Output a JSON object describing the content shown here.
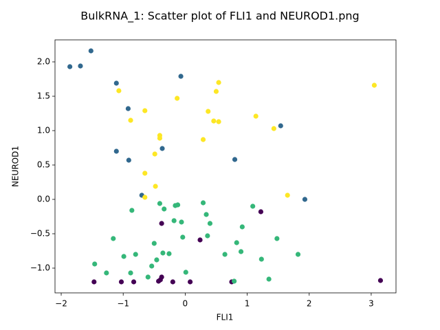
{
  "chart_data": {
    "type": "scatter",
    "title": "BulkRNA_1: Scatter plot of FLI1 and NEUROD1.png",
    "xlabel": "FLI1",
    "ylabel": "NEUROD1",
    "xlim": [
      -2.1,
      3.4
    ],
    "ylim": [
      -1.36,
      2.32
    ],
    "xticks": [
      -2,
      -1,
      0,
      1,
      2,
      3
    ],
    "yticks": [
      -1.0,
      -0.5,
      0.0,
      0.5,
      1.0,
      1.5,
      2.0
    ],
    "xtick_labels": [
      "−2",
      "−1",
      "0",
      "1",
      "2",
      "3"
    ],
    "ytick_labels": [
      "−1.0",
      "−0.5",
      "0.0",
      "0.5",
      "1.0",
      "1.5",
      "2.0"
    ],
    "grid": false,
    "legend": "none",
    "series": [
      {
        "color": "#440154",
        "points": [
          [
            -1.47,
            -1.2
          ],
          [
            -1.03,
            -1.2
          ],
          [
            -0.83,
            -1.2
          ],
          [
            -0.43,
            -1.19
          ],
          [
            -0.4,
            -1.17
          ],
          [
            -0.38,
            -1.13
          ],
          [
            -0.2,
            -1.2
          ],
          [
            0.08,
            -1.2
          ],
          [
            -0.38,
            -0.35
          ],
          [
            0.24,
            -0.59
          ],
          [
            0.75,
            -1.2
          ],
          [
            1.22,
            -0.18
          ],
          [
            3.15,
            -1.18
          ]
        ]
      },
      {
        "color": "#31688e",
        "points": [
          [
            -1.86,
            1.93
          ],
          [
            -1.69,
            1.94
          ],
          [
            -1.52,
            2.16
          ],
          [
            -1.11,
            1.69
          ],
          [
            -0.92,
            1.32
          ],
          [
            -1.11,
            0.7
          ],
          [
            -0.91,
            0.57
          ],
          [
            -0.7,
            0.06
          ],
          [
            -0.37,
            0.74
          ],
          [
            -0.07,
            1.79
          ],
          [
            0.8,
            0.58
          ],
          [
            1.54,
            1.07
          ],
          [
            1.93,
            0.0
          ]
        ]
      },
      {
        "color": "#35b779",
        "points": [
          [
            -1.46,
            -0.94
          ],
          [
            -1.27,
            -1.07
          ],
          [
            -1.16,
            -0.57
          ],
          [
            -0.99,
            -0.83
          ],
          [
            -0.88,
            -1.07
          ],
          [
            -0.86,
            -0.16
          ],
          [
            -0.8,
            -0.8
          ],
          [
            -0.6,
            -1.13
          ],
          [
            -0.54,
            -0.97
          ],
          [
            -0.5,
            -0.64
          ],
          [
            -0.46,
            -0.88
          ],
          [
            -0.41,
            -0.06
          ],
          [
            -0.36,
            -0.78
          ],
          [
            -0.34,
            -0.14
          ],
          [
            -0.26,
            -0.79
          ],
          [
            -0.18,
            -0.31
          ],
          [
            -0.16,
            -0.09
          ],
          [
            -0.12,
            -0.08
          ],
          [
            -0.06,
            -0.33
          ],
          [
            -0.04,
            -0.55
          ],
          [
            0.01,
            -1.06
          ],
          [
            0.29,
            -0.05
          ],
          [
            0.34,
            -0.22
          ],
          [
            0.36,
            -0.53
          ],
          [
            0.4,
            -0.35
          ],
          [
            0.64,
            -0.8
          ],
          [
            0.79,
            -1.19
          ],
          [
            0.83,
            -0.63
          ],
          [
            0.9,
            -0.76
          ],
          [
            0.92,
            -0.4
          ],
          [
            1.09,
            -0.1
          ],
          [
            1.23,
            -0.87
          ],
          [
            1.35,
            -1.16
          ],
          [
            1.48,
            -0.57
          ],
          [
            1.82,
            -0.8
          ]
        ]
      },
      {
        "color": "#fde725",
        "points": [
          [
            -1.07,
            1.58
          ],
          [
            -0.88,
            1.15
          ],
          [
            -0.65,
            1.29
          ],
          [
            -0.65,
            0.38
          ],
          [
            -0.65,
            0.03
          ],
          [
            -0.49,
            0.66
          ],
          [
            -0.48,
            0.19
          ],
          [
            -0.41,
            0.93
          ],
          [
            -0.41,
            0.89
          ],
          [
            -0.13,
            1.47
          ],
          [
            0.29,
            0.87
          ],
          [
            0.37,
            1.28
          ],
          [
            0.46,
            1.14
          ],
          [
            0.5,
            1.57
          ],
          [
            0.54,
            1.7
          ],
          [
            0.54,
            1.13
          ],
          [
            1.14,
            1.21
          ],
          [
            1.43,
            1.03
          ],
          [
            1.65,
            0.06
          ],
          [
            3.05,
            1.66
          ]
        ]
      }
    ]
  }
}
